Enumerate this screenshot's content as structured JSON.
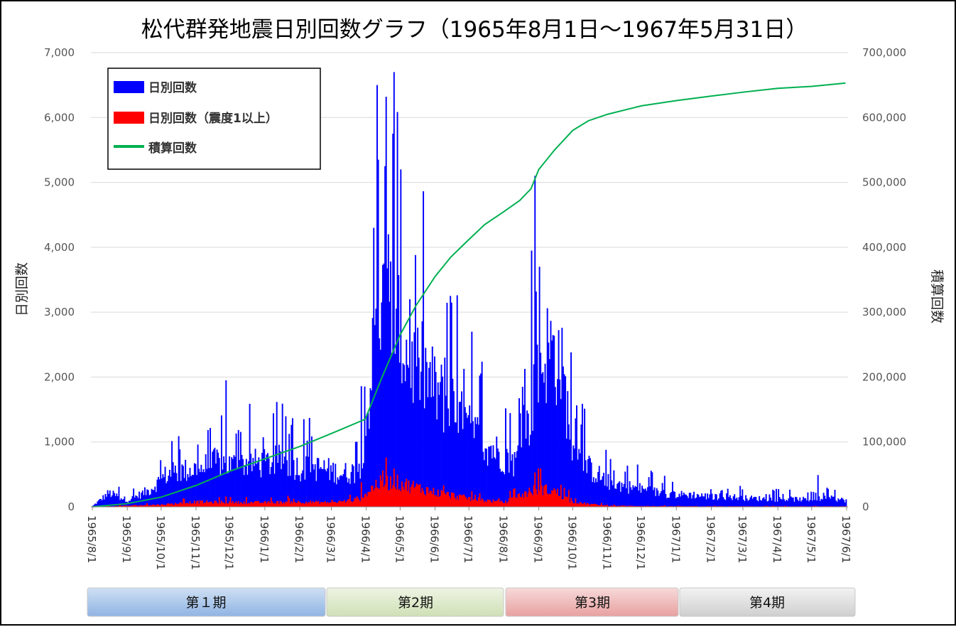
{
  "chart_data": {
    "type": "bar",
    "title": "松代群発地震日別回数グラフ（1965年8月1日～1967年5月31日）",
    "ylabel": "日別回数",
    "y2label": "積算回数",
    "ylim": [
      0,
      7000
    ],
    "y2lim": [
      0,
      700000
    ],
    "yticks": [
      "0",
      "1,000",
      "2,000",
      "3,000",
      "4,000",
      "5,000",
      "6,000",
      "7,000"
    ],
    "y2ticks": [
      "0",
      "100,000",
      "200,000",
      "300,000",
      "400,000",
      "500,000",
      "600,000",
      "700,000"
    ],
    "xticks": [
      "1965/8/1",
      "1965/9/1",
      "1965/10/1",
      "1965/11/1",
      "1965/12/1",
      "1966/1/1",
      "1966/2/1",
      "1966/3/1",
      "1966/4/1",
      "1966/5/1",
      "1966/6/1",
      "1966/7/1",
      "1966/8/1",
      "1966/9/1",
      "1966/10/1",
      "1966/11/1",
      "1966/12/1",
      "1967/1/1",
      "1967/2/1",
      "1967/3/1",
      "1967/4/1",
      "1967/5/1",
      "1967/6/1"
    ],
    "grid": true,
    "legend_position": "top-left",
    "series": [
      {
        "name": "日別回数",
        "type": "bar",
        "axis": "left",
        "color": "#0000ff",
        "points": [
          [
            "1965-08-01",
            20
          ],
          [
            "1965-08-15",
            250
          ],
          [
            "1965-09-01",
            120
          ],
          [
            "1965-09-20",
            300
          ],
          [
            "1965-10-05",
            580
          ],
          [
            "1965-10-20",
            650
          ],
          [
            "1965-11-05",
            700
          ],
          [
            "1965-11-20",
            820
          ],
          [
            "1965-12-01",
            750
          ],
          [
            "1965-12-15",
            800
          ],
          [
            "1966-01-01",
            780
          ],
          [
            "1966-01-15",
            850
          ],
          [
            "1966-02-01",
            700
          ],
          [
            "1966-02-20",
            700
          ],
          [
            "1966-03-10",
            600
          ],
          [
            "1966-03-25",
            650
          ],
          [
            "1966-04-01",
            1600
          ],
          [
            "1966-04-10",
            3500
          ],
          [
            "1966-04-20",
            3600
          ],
          [
            "1966-05-01",
            3000
          ],
          [
            "1966-05-10",
            2600
          ],
          [
            "1966-05-20",
            2500
          ],
          [
            "1966-06-01",
            2100
          ],
          [
            "1966-06-15",
            1800
          ],
          [
            "1966-07-01",
            1400
          ],
          [
            "1966-07-15",
            1150
          ],
          [
            "1966-08-01",
            900
          ],
          [
            "1966-08-10",
            800
          ],
          [
            "1966-08-20",
            1300
          ],
          [
            "1966-09-01",
            2500
          ],
          [
            "1966-09-10",
            2900
          ],
          [
            "1966-09-20",
            2600
          ],
          [
            "1966-10-01",
            1000
          ],
          [
            "1966-10-15",
            700
          ],
          [
            "1966-11-01",
            450
          ],
          [
            "1966-11-15",
            380
          ],
          [
            "1966-12-01",
            320
          ],
          [
            "1966-12-15",
            260
          ],
          [
            "1967-01-01",
            220
          ],
          [
            "1967-01-15",
            220
          ],
          [
            "1967-02-01",
            180
          ],
          [
            "1967-02-15",
            190
          ],
          [
            "1967-03-01",
            160
          ],
          [
            "1967-03-15",
            150
          ],
          [
            "1967-04-01",
            140
          ],
          [
            "1967-04-15",
            140
          ],
          [
            "1967-05-01",
            130
          ],
          [
            "1967-05-15",
            160
          ],
          [
            "1967-05-31",
            120
          ]
        ],
        "peaks": [
          [
            "1965-11-27",
            1950
          ],
          [
            "1966-02-09",
            1370
          ],
          [
            "1966-03-27",
            1860
          ],
          [
            "1966-04-07",
            4300
          ],
          [
            "1966-04-10",
            6500
          ],
          [
            "1966-04-17",
            5250
          ],
          [
            "1966-04-20",
            4200
          ],
          [
            "1966-04-24",
            5750
          ],
          [
            "1966-04-25",
            6700
          ],
          [
            "1966-05-01",
            5200
          ],
          [
            "1966-05-09",
            3200
          ],
          [
            "1966-05-17",
            2300
          ],
          [
            "1966-06-09",
            2300
          ],
          [
            "1966-08-17",
            1850
          ],
          [
            "1966-08-25",
            3950
          ],
          [
            "1966-08-28",
            5100
          ],
          [
            "1966-09-01",
            3700
          ],
          [
            "1967-05-06",
            490
          ]
        ]
      },
      {
        "name": "日別回数（震度1以上）",
        "type": "bar",
        "axis": "left",
        "color": "#ff0000",
        "points": [
          [
            "1965-08-01",
            0
          ],
          [
            "1965-10-01",
            40
          ],
          [
            "1965-11-01",
            90
          ],
          [
            "1965-12-01",
            80
          ],
          [
            "1966-01-01",
            80
          ],
          [
            "1966-02-01",
            90
          ],
          [
            "1966-03-01",
            80
          ],
          [
            "1966-03-25",
            130
          ],
          [
            "1966-04-10",
            420
          ],
          [
            "1966-04-25",
            450
          ],
          [
            "1966-05-10",
            380
          ],
          [
            "1966-06-01",
            260
          ],
          [
            "1966-07-01",
            150
          ],
          [
            "1966-08-01",
            80
          ],
          [
            "1966-08-20",
            250
          ],
          [
            "1966-09-01",
            330
          ],
          [
            "1966-09-15",
            280
          ],
          [
            "1966-10-01",
            80
          ],
          [
            "1966-11-01",
            20
          ],
          [
            "1967-01-01",
            10
          ],
          [
            "1967-05-31",
            8
          ]
        ],
        "peaks": [
          [
            "1965-11-27",
            160
          ],
          [
            "1966-03-27",
            380
          ],
          [
            "1966-04-15",
            560
          ],
          [
            "1966-04-25",
            590
          ],
          [
            "1966-08-28",
            530
          ]
        ]
      },
      {
        "name": "積算回数",
        "type": "line",
        "axis": "right",
        "color": "#00b050",
        "points": [
          [
            "1965-08-01",
            0
          ],
          [
            "1965-09-01",
            5000
          ],
          [
            "1965-10-01",
            15000
          ],
          [
            "1965-11-01",
            33000
          ],
          [
            "1965-12-01",
            55000
          ],
          [
            "1966-01-01",
            74000
          ],
          [
            "1966-02-01",
            93000
          ],
          [
            "1966-03-01",
            113000
          ],
          [
            "1966-03-31",
            135000
          ],
          [
            "1966-04-15",
            200000
          ],
          [
            "1966-05-01",
            265000
          ],
          [
            "1966-05-15",
            310000
          ],
          [
            "1966-06-01",
            355000
          ],
          [
            "1966-06-15",
            385000
          ],
          [
            "1966-07-01",
            412000
          ],
          [
            "1966-07-15",
            435000
          ],
          [
            "1966-08-01",
            455000
          ],
          [
            "1966-08-15",
            472000
          ],
          [
            "1966-08-25",
            490000
          ],
          [
            "1966-09-01",
            520000
          ],
          [
            "1966-09-15",
            550000
          ],
          [
            "1966-10-01",
            580000
          ],
          [
            "1966-10-15",
            595000
          ],
          [
            "1966-11-01",
            605000
          ],
          [
            "1966-12-01",
            618000
          ],
          [
            "1967-01-01",
            626000
          ],
          [
            "1967-02-01",
            633000
          ],
          [
            "1967-03-01",
            639000
          ],
          [
            "1967-04-01",
            645000
          ],
          [
            "1967-05-01",
            648000
          ],
          [
            "1967-05-31",
            653000
          ]
        ]
      }
    ],
    "phases": [
      {
        "label": "第１期",
        "from": "1965-08-01",
        "to": "1966-03-01",
        "color": "#9dc3e6"
      },
      {
        "label": "第2期",
        "from": "1966-03-01",
        "to": "1966-08-01",
        "color": "#d9e6c4"
      },
      {
        "label": "第3期",
        "from": "1966-08-01",
        "to": "1966-12-31",
        "color": "#efb1b1"
      },
      {
        "label": "第4期",
        "from": "1966-12-31",
        "to": "1967-05-31",
        "color": "#d6d6d6"
      }
    ]
  }
}
